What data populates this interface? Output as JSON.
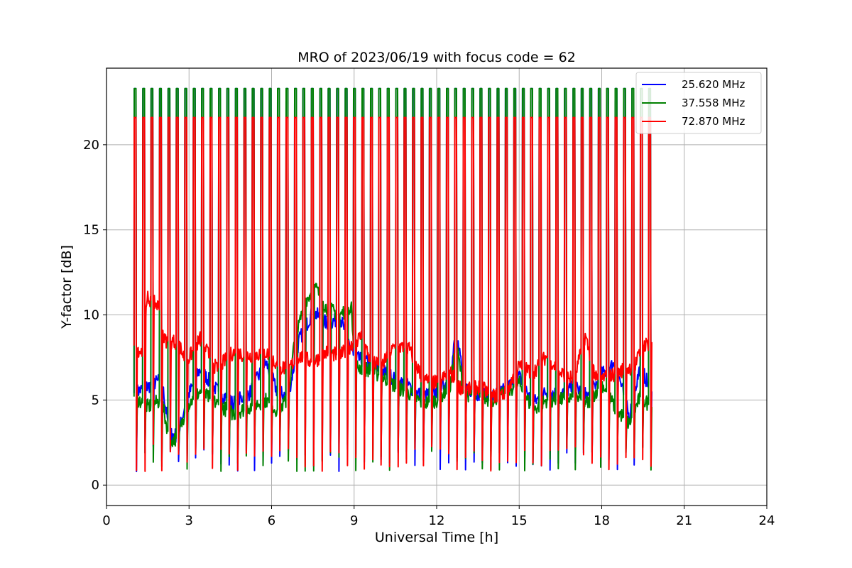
{
  "chart_data": {
    "type": "line",
    "title": "MRO of 2023/06/19 with focus code = 62",
    "xlabel": "Universal Time [h]",
    "ylabel": "Y-factor [dB]",
    "xlim": [
      0,
      24
    ],
    "ylim": [
      -1.2,
      24.5
    ],
    "xticks": [
      0,
      3,
      6,
      9,
      12,
      15,
      18,
      21,
      24
    ],
    "yticks": [
      0,
      5,
      10,
      15,
      20
    ],
    "grid": true,
    "legend_position": "top-right",
    "spike_times": [
      1.0,
      1.31,
      1.61,
      1.92,
      2.23,
      2.53,
      2.84,
      3.15,
      3.45,
      3.76,
      4.07,
      4.37,
      4.68,
      4.99,
      5.29,
      5.6,
      5.91,
      6.21,
      6.52,
      6.83,
      7.13,
      7.44,
      7.75,
      8.05,
      8.36,
      8.67,
      8.97,
      9.28,
      9.59,
      9.89,
      10.2,
      10.51,
      10.81,
      11.12,
      11.43,
      11.73,
      12.04,
      12.35,
      12.65,
      12.96,
      13.27,
      13.57,
      13.88,
      14.19,
      14.49,
      14.8,
      15.11,
      15.41,
      15.72,
      16.03,
      16.33,
      16.64,
      16.95,
      17.25,
      17.56,
      17.87,
      18.17,
      18.48,
      18.79,
      19.09,
      19.4,
      19.7
    ],
    "series": [
      {
        "name": "25.620 MHz",
        "color": "#0000ff",
        "spike_high": 23.3,
        "baseline": [
          [
            1.0,
            5.4
          ],
          [
            1.5,
            5.8
          ],
          [
            2.0,
            6.2
          ],
          [
            2.3,
            3.0
          ],
          [
            2.6,
            2.9
          ],
          [
            2.9,
            5.0
          ],
          [
            3.4,
            6.8
          ],
          [
            4.0,
            5.6
          ],
          [
            4.6,
            4.8
          ],
          [
            5.2,
            5.4
          ],
          [
            5.8,
            7.2
          ],
          [
            6.2,
            5.5
          ],
          [
            6.6,
            5.2
          ],
          [
            7.0,
            8.5
          ],
          [
            7.5,
            10.2
          ],
          [
            8.0,
            9.5
          ],
          [
            8.5,
            9.8
          ],
          [
            9.0,
            7.5
          ],
          [
            9.5,
            7.2
          ],
          [
            10.0,
            6.8
          ],
          [
            10.5,
            6.2
          ],
          [
            11.0,
            5.8
          ],
          [
            11.5,
            5.2
          ],
          [
            12.0,
            5.5
          ],
          [
            12.5,
            6.2
          ],
          [
            12.7,
            9.2
          ],
          [
            13.0,
            5.8
          ],
          [
            13.5,
            5.4
          ],
          [
            14.0,
            5.2
          ],
          [
            14.5,
            5.6
          ],
          [
            15.0,
            6.4
          ],
          [
            15.5,
            4.8
          ],
          [
            16.0,
            5.5
          ],
          [
            16.5,
            5.3
          ],
          [
            17.0,
            5.8
          ],
          [
            17.5,
            5.2
          ],
          [
            18.0,
            6.5
          ],
          [
            18.5,
            7.2
          ],
          [
            19.0,
            4.0
          ],
          [
            19.4,
            7.0
          ],
          [
            19.8,
            5.5
          ]
        ]
      },
      {
        "name": "37.558 MHz",
        "color": "#008000",
        "spike_high": 23.3,
        "baseline": [
          [
            1.0,
            5.2
          ],
          [
            1.5,
            4.6
          ],
          [
            2.0,
            5.0
          ],
          [
            2.3,
            2.6
          ],
          [
            2.6,
            2.8
          ],
          [
            2.9,
            4.6
          ],
          [
            3.4,
            5.5
          ],
          [
            4.0,
            4.8
          ],
          [
            4.6,
            4.2
          ],
          [
            5.2,
            4.6
          ],
          [
            5.8,
            5.0
          ],
          [
            6.2,
            4.4
          ],
          [
            6.6,
            5.0
          ],
          [
            6.8,
            8.0
          ],
          [
            7.2,
            10.8
          ],
          [
            7.6,
            11.6
          ],
          [
            8.0,
            10.4
          ],
          [
            8.5,
            10.0
          ],
          [
            8.9,
            10.6
          ],
          [
            9.0,
            7.0
          ],
          [
            9.5,
            6.8
          ],
          [
            10.0,
            6.4
          ],
          [
            10.5,
            5.8
          ],
          [
            11.0,
            5.4
          ],
          [
            11.5,
            4.8
          ],
          [
            12.0,
            5.0
          ],
          [
            12.5,
            5.8
          ],
          [
            12.7,
            8.5
          ],
          [
            13.0,
            5.4
          ],
          [
            13.5,
            5.2
          ],
          [
            14.0,
            5.0
          ],
          [
            14.5,
            5.4
          ],
          [
            15.0,
            6.0
          ],
          [
            15.5,
            4.4
          ],
          [
            16.0,
            5.0
          ],
          [
            16.5,
            5.0
          ],
          [
            17.0,
            5.2
          ],
          [
            17.5,
            4.8
          ],
          [
            18.0,
            6.0
          ],
          [
            18.5,
            4.5
          ],
          [
            19.0,
            3.6
          ],
          [
            19.4,
            5.2
          ],
          [
            19.8,
            4.6
          ]
        ]
      },
      {
        "name": "72.870 MHz",
        "color": "#ff0000",
        "spike_high": 21.6,
        "baseline": [
          [
            1.0,
            8.2
          ],
          [
            1.3,
            7.8
          ],
          [
            1.5,
            11.0
          ],
          [
            1.9,
            10.5
          ],
          [
            2.1,
            8.5
          ],
          [
            2.6,
            8.4
          ],
          [
            2.9,
            7.2
          ],
          [
            3.4,
            8.6
          ],
          [
            4.0,
            6.8
          ],
          [
            4.6,
            7.8
          ],
          [
            5.2,
            7.6
          ],
          [
            5.8,
            7.8
          ],
          [
            6.2,
            7.0
          ],
          [
            6.6,
            6.8
          ],
          [
            7.0,
            7.6
          ],
          [
            7.5,
            7.2
          ],
          [
            8.0,
            7.8
          ],
          [
            8.5,
            7.6
          ],
          [
            9.0,
            8.4
          ],
          [
            9.3,
            8.8
          ],
          [
            9.6,
            7.2
          ],
          [
            10.0,
            7.0
          ],
          [
            10.5,
            8.2
          ],
          [
            11.0,
            8.0
          ],
          [
            11.5,
            6.2
          ],
          [
            12.0,
            6.0
          ],
          [
            12.5,
            6.6
          ],
          [
            12.8,
            5.8
          ],
          [
            13.2,
            5.6
          ],
          [
            13.6,
            5.8
          ],
          [
            14.0,
            5.2
          ],
          [
            14.5,
            5.4
          ],
          [
            15.0,
            7.0
          ],
          [
            15.5,
            6.6
          ],
          [
            16.0,
            7.6
          ],
          [
            16.5,
            6.6
          ],
          [
            17.0,
            6.2
          ],
          [
            17.4,
            8.8
          ],
          [
            17.8,
            6.2
          ],
          [
            18.3,
            6.4
          ],
          [
            18.8,
            6.8
          ],
          [
            19.2,
            7.0
          ],
          [
            19.5,
            8.2
          ],
          [
            19.8,
            8.4
          ]
        ]
      }
    ]
  }
}
